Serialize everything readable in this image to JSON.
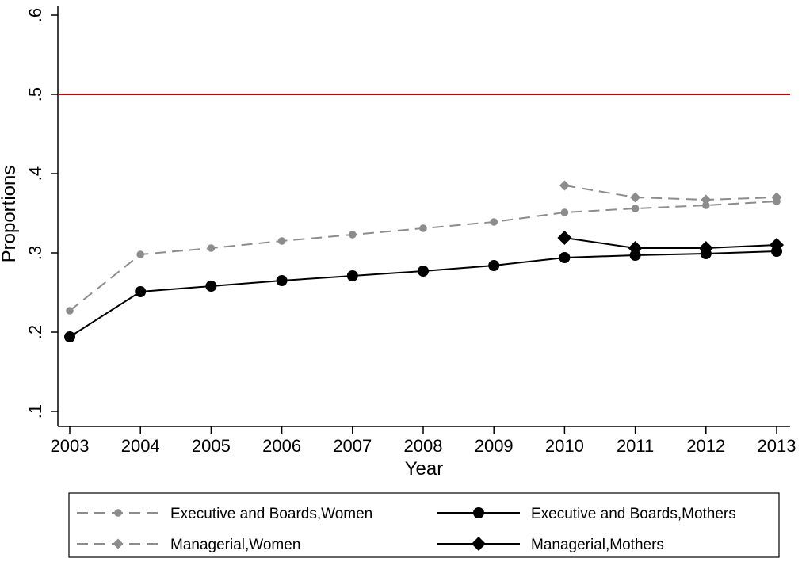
{
  "chart_data": {
    "type": "line",
    "title": "",
    "xlabel": "Year",
    "ylabel": "Proportions",
    "x": [
      2003,
      2004,
      2005,
      2006,
      2007,
      2008,
      2009,
      2010,
      2011,
      2012,
      2013
    ],
    "xlim": [
      2003,
      2013.2
    ],
    "ylim": [
      0.08,
      0.62
    ],
    "x_ticks": [
      {
        "value": 2003,
        "label": "2003"
      },
      {
        "value": 2004,
        "label": "2004"
      },
      {
        "value": 2005,
        "label": "2005"
      },
      {
        "value": 2006,
        "label": "2006"
      },
      {
        "value": 2007,
        "label": "2007"
      },
      {
        "value": 2008,
        "label": "2008"
      },
      {
        "value": 2009,
        "label": "2009"
      },
      {
        "value": 2010,
        "label": "2010"
      },
      {
        "value": 2011,
        "label": "2011"
      },
      {
        "value": 2012,
        "label": "2012"
      },
      {
        "value": 2013,
        "label": "2013"
      }
    ],
    "y_ticks": [
      {
        "value": 0.1,
        "label": ".1"
      },
      {
        "value": 0.2,
        "label": ".2"
      },
      {
        "value": 0.3,
        "label": ".3"
      },
      {
        "value": 0.4,
        "label": ".4"
      },
      {
        "value": 0.5,
        "label": ".5"
      },
      {
        "value": 0.6,
        "label": ".6"
      }
    ],
    "grid": false,
    "legend_position": "bottom",
    "reference_line": {
      "y": 0.5,
      "color": "#cc0000"
    },
    "series": [
      {
        "name": "Executive and Boards,Women",
        "color": "#8c8c8c",
        "line_style": "dashed",
        "marker": "circle-small",
        "x": [
          2003,
          2004,
          2005,
          2006,
          2007,
          2008,
          2009,
          2010,
          2011,
          2012,
          2013
        ],
        "values": [
          0.227,
          0.298,
          0.306,
          0.315,
          0.323,
          0.331,
          0.339,
          0.351,
          0.356,
          0.36,
          0.365
        ]
      },
      {
        "name": "Executive and Boards,Mothers",
        "color": "#000000",
        "line_style": "solid",
        "marker": "circle",
        "x": [
          2003,
          2004,
          2005,
          2006,
          2007,
          2008,
          2009,
          2010,
          2011,
          2012,
          2013
        ],
        "values": [
          0.194,
          0.251,
          0.258,
          0.265,
          0.271,
          0.277,
          0.284,
          0.294,
          0.297,
          0.299,
          0.302
        ]
      },
      {
        "name": "Managerial,Women",
        "color": "#8c8c8c",
        "line_style": "dashed",
        "marker": "diamond-small",
        "x": [
          2010,
          2011,
          2012,
          2013
        ],
        "values": [
          0.385,
          0.37,
          0.367,
          0.37
        ]
      },
      {
        "name": "Managerial,Mothers",
        "color": "#000000",
        "line_style": "solid",
        "marker": "diamond",
        "x": [
          2010,
          2011,
          2012,
          2013
        ],
        "values": [
          0.319,
          0.306,
          0.306,
          0.31
        ]
      }
    ]
  }
}
